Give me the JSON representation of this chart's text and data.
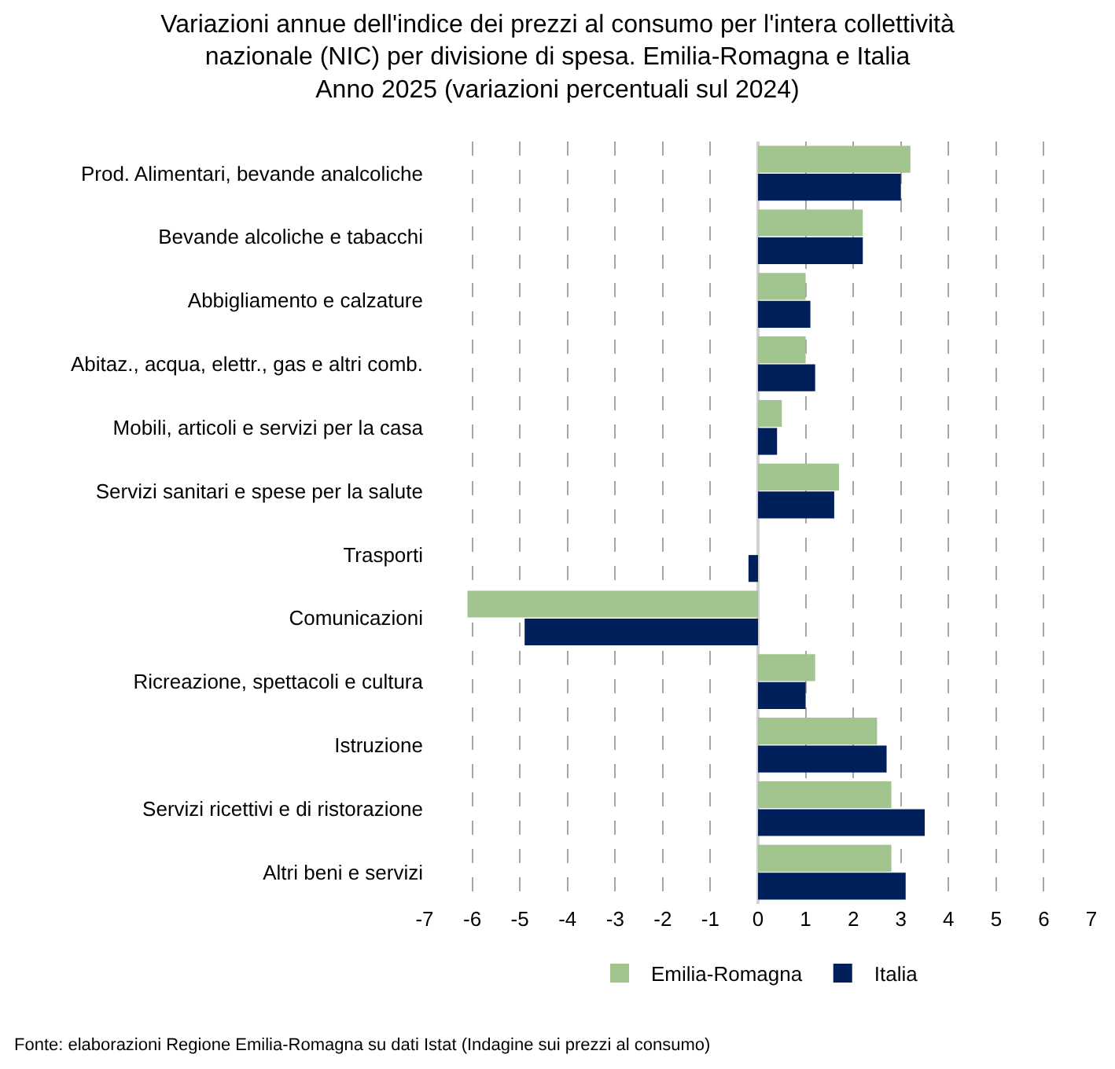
{
  "chart_data": {
    "type": "bar",
    "orientation": "horizontal",
    "title": "Variazioni annue dell'indice dei prezzi al consumo per l'intera collettività\nnazionale (NIC) per divisione di spesa. Emilia-Romagna e Italia\nAnno 2025 (variazioni percentuali sul 2024)",
    "categories": [
      "Prod. Alimentari, bevande analcoliche",
      "Bevande alcoliche e tabacchi",
      "Abbigliamento e calzature",
      "Abitaz., acqua, elettr., gas e altri comb.",
      "Mobili, articoli e servizi per la casa",
      "Servizi sanitari e spese per la salute",
      "Trasporti",
      "Comunicazioni",
      "Ricreazione, spettacoli e cultura",
      "Istruzione",
      "Servizi ricettivi e di ristorazione",
      "Altri beni e servizi"
    ],
    "series": [
      {
        "name": "Emilia-Romagna",
        "color": "#a2c48f",
        "values": [
          3.2,
          2.2,
          1.0,
          1.0,
          0.5,
          1.7,
          0,
          -6.1,
          1.2,
          2.5,
          2.8,
          2.8
        ]
      },
      {
        "name": "Italia",
        "color": "#00205b",
        "values": [
          3.0,
          2.2,
          1.1,
          1.2,
          0.4,
          1.6,
          -0.2,
          -4.9,
          1.0,
          2.7,
          3.5,
          3.1
        ]
      }
    ],
    "xlim": [
      -7,
      7
    ],
    "xticks": [
      -7,
      -6,
      -5,
      -4,
      -3,
      -2,
      -1,
      0,
      1,
      2,
      3,
      4,
      5,
      6,
      7
    ],
    "grid": "x",
    "legend": "bottom",
    "annotations": [
      "Fonte: elaborazioni Regione Emilia-Romagna su dati Istat (Indagine sui prezzi al consumo)"
    ]
  }
}
